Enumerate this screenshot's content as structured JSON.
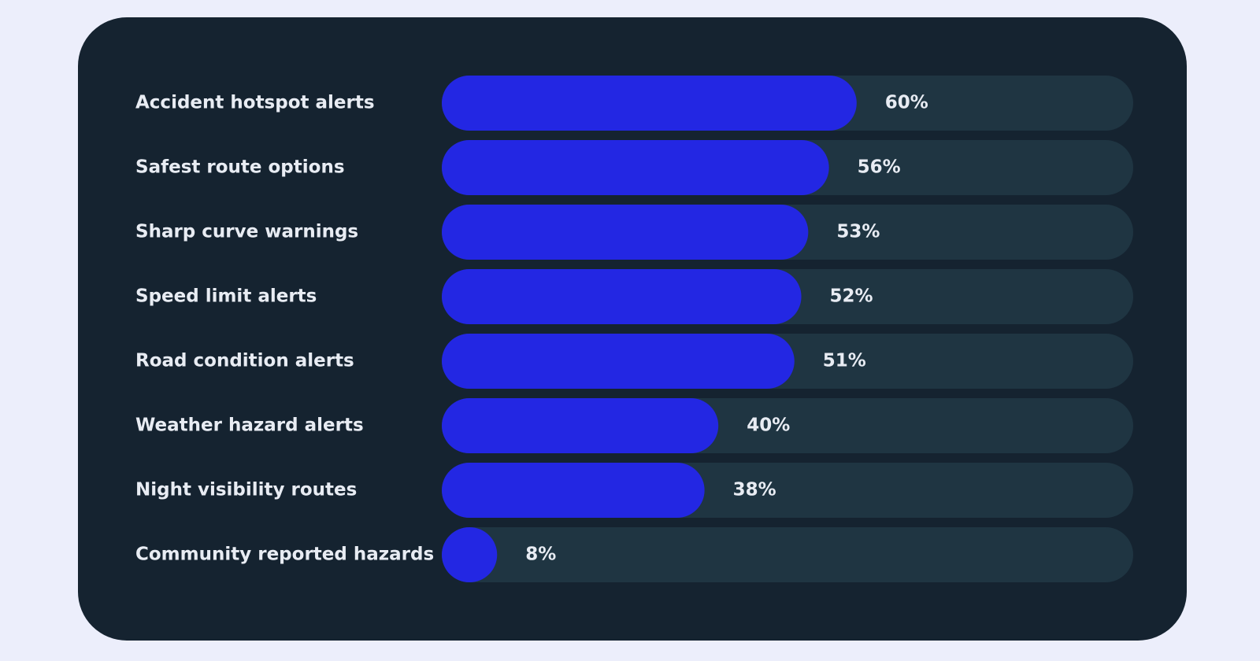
{
  "chart_data": {
    "type": "bar",
    "categories": [
      "Accident hotspot alerts",
      "Safest route options",
      "Sharp curve warnings",
      "Speed limit alerts",
      "Road condition alerts",
      "Weather hazard alerts",
      "Night visibility routes",
      "Community reported hazards"
    ],
    "values": [
      60,
      56,
      53,
      52,
      51,
      40,
      38,
      8
    ],
    "value_labels": [
      "60%",
      "56%",
      "53%",
      "52%",
      "51%",
      "40%",
      "38%",
      "8%"
    ],
    "color": "#2327e3",
    "xlim": [
      0,
      100
    ]
  }
}
